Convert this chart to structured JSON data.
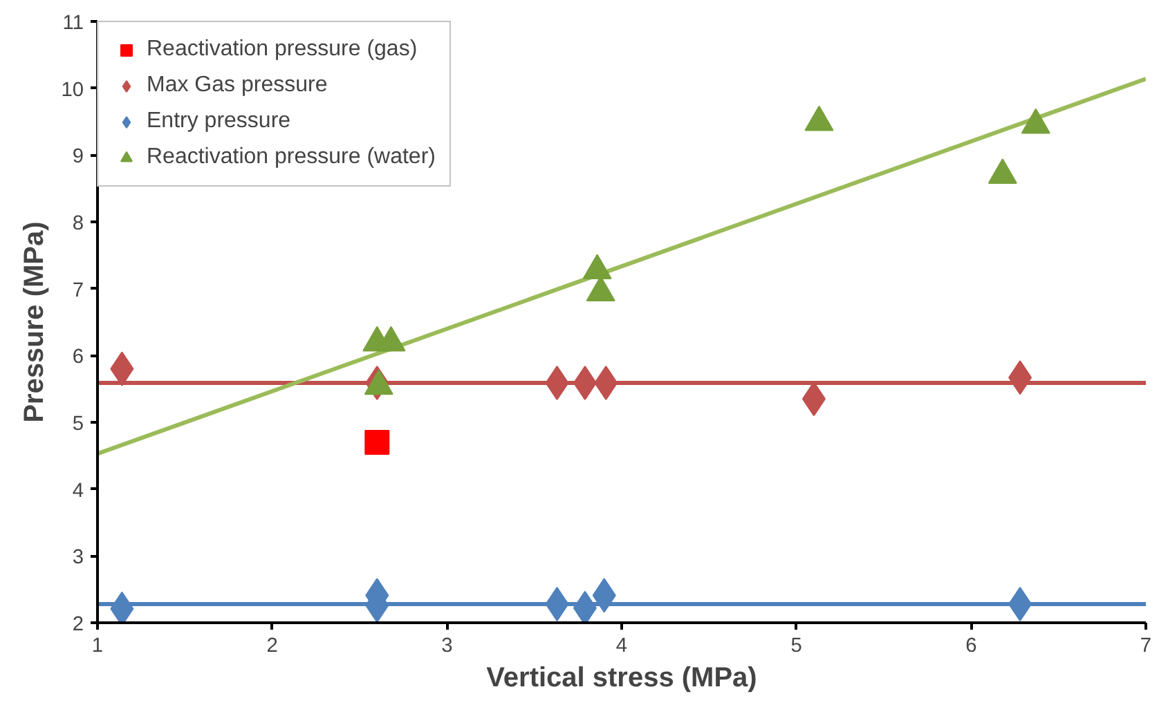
{
  "chart_data": {
    "type": "scatter",
    "xlabel": "Vertical stress (MPa)",
    "ylabel": "Pressure (MPa)",
    "xlim": [
      1,
      7
    ],
    "ylim": [
      2,
      11
    ],
    "xticks": [
      1,
      2,
      3,
      4,
      5,
      6,
      7
    ],
    "yticks": [
      2,
      3,
      4,
      5,
      6,
      7,
      8,
      9,
      10,
      11
    ],
    "grid": false,
    "legend": "top left",
    "series": [
      {
        "name": "Reactivation pressure (gas)",
        "color": "#ff0000",
        "marker": "square",
        "x": [
          2.6
        ],
        "values": [
          4.7
        ]
      },
      {
        "name": "Max Gas pressure",
        "color": "#c0504d",
        "marker": "diamond",
        "x": [
          1.14,
          2.6,
          3.63,
          3.79,
          3.91,
          5.1,
          6.28
        ],
        "values": [
          5.8,
          5.59,
          5.59,
          5.59,
          5.59,
          5.35,
          5.67
        ]
      },
      {
        "name": "Entry pressure",
        "color": "#4f81bd",
        "marker": "diamond",
        "x": [
          1.14,
          2.6,
          2.6,
          3.63,
          3.79,
          3.9,
          6.28
        ],
        "values": [
          2.21,
          2.41,
          2.26,
          2.28,
          2.22,
          2.41,
          2.28
        ]
      },
      {
        "name": "Reactivation pressure (water)",
        "color": "#77a03a",
        "marker": "triangle",
        "x": [
          2.6,
          2.68,
          2.61,
          3.86,
          3.88,
          5.13,
          6.18,
          6.37
        ],
        "values": [
          6.19,
          6.19,
          5.54,
          7.27,
          6.94,
          9.49,
          8.7,
          9.45
        ]
      },
      {
        "type": "line",
        "color": "#c0504d",
        "marker": "none",
        "x": [
          1,
          7
        ],
        "values": [
          5.59,
          5.59
        ]
      },
      {
        "type": "line",
        "color": "#4f81bd",
        "marker": "none",
        "x": [
          1,
          7
        ],
        "values": [
          2.28,
          2.28
        ]
      },
      {
        "type": "line",
        "color": "#9bbb59",
        "marker": "none",
        "x": [
          1,
          7
        ],
        "values": [
          4.53,
          10.14
        ]
      }
    ]
  }
}
